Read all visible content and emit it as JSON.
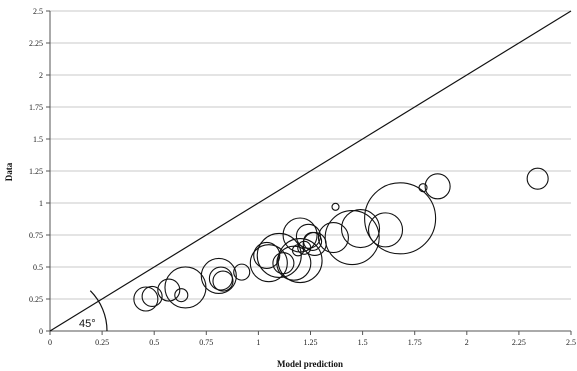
{
  "chart_data": {
    "type": "scatter",
    "title": "",
    "xlabel": "Model prediction",
    "ylabel": "Data",
    "xlim": [
      0,
      2.5
    ],
    "ylim": [
      0,
      2.5
    ],
    "x_ticks": [
      "0",
      "0.25",
      "0.5",
      "0.75",
      "1",
      "1.25",
      "1.5",
      "1.75",
      "2",
      "2.25",
      "2.5"
    ],
    "y_ticks": [
      "0",
      "0.25",
      "0.5",
      "0.75",
      "1",
      "1.25",
      "1.5",
      "1.75",
      "2",
      "2.25",
      "2.5"
    ],
    "grid": "horizontal",
    "reference_line": {
      "from": [
        0,
        0
      ],
      "to": [
        2.5,
        2.5
      ]
    },
    "angle_annotation": "45°",
    "points": [
      {
        "x": 0.46,
        "y": 0.25,
        "size": 2.4
      },
      {
        "x": 0.49,
        "y": 0.27,
        "size": 2
      },
      {
        "x": 0.57,
        "y": 0.32,
        "size": 2.2
      },
      {
        "x": 0.63,
        "y": 0.28,
        "size": 1.3
      },
      {
        "x": 0.65,
        "y": 0.34,
        "size": 4.1
      },
      {
        "x": 0.81,
        "y": 0.43,
        "size": 3.5
      },
      {
        "x": 0.82,
        "y": 0.41,
        "size": 2.3
      },
      {
        "x": 0.83,
        "y": 0.39,
        "size": 2
      },
      {
        "x": 0.92,
        "y": 0.46,
        "size": 1.6
      },
      {
        "x": 1.04,
        "y": 0.59,
        "size": 2.6
      },
      {
        "x": 1.05,
        "y": 0.53,
        "size": 3.7
      },
      {
        "x": 1.1,
        "y": 0.59,
        "size": 4.4
      },
      {
        "x": 1.12,
        "y": 0.53,
        "size": 2.1
      },
      {
        "x": 1.17,
        "y": 0.53,
        "size": 3.4
      },
      {
        "x": 1.2,
        "y": 0.55,
        "size": 4.4
      },
      {
        "x": 1.2,
        "y": 0.75,
        "size": 3.4
      },
      {
        "x": 1.19,
        "y": 0.63,
        "size": 1.1
      },
      {
        "x": 1.22,
        "y": 0.65,
        "size": 1.3
      },
      {
        "x": 1.24,
        "y": 0.74,
        "size": 2.4
      },
      {
        "x": 1.27,
        "y": 0.68,
        "size": 2.3
      },
      {
        "x": 1.26,
        "y": 0.7,
        "size": 1.8
      },
      {
        "x": 1.36,
        "y": 0.73,
        "size": 3
      },
      {
        "x": 1.37,
        "y": 0.97,
        "size": 0.7
      },
      {
        "x": 1.45,
        "y": 0.73,
        "size": 5.4
      },
      {
        "x": 1.49,
        "y": 0.8,
        "size": 3.8
      },
      {
        "x": 1.61,
        "y": 0.79,
        "size": 3.4
      },
      {
        "x": 1.68,
        "y": 0.88,
        "size": 7.1
      },
      {
        "x": 1.79,
        "y": 1.12,
        "size": 0.8
      },
      {
        "x": 1.86,
        "y": 1.13,
        "size": 2.5
      },
      {
        "x": 2.34,
        "y": 1.19,
        "size": 2.1
      }
    ]
  }
}
